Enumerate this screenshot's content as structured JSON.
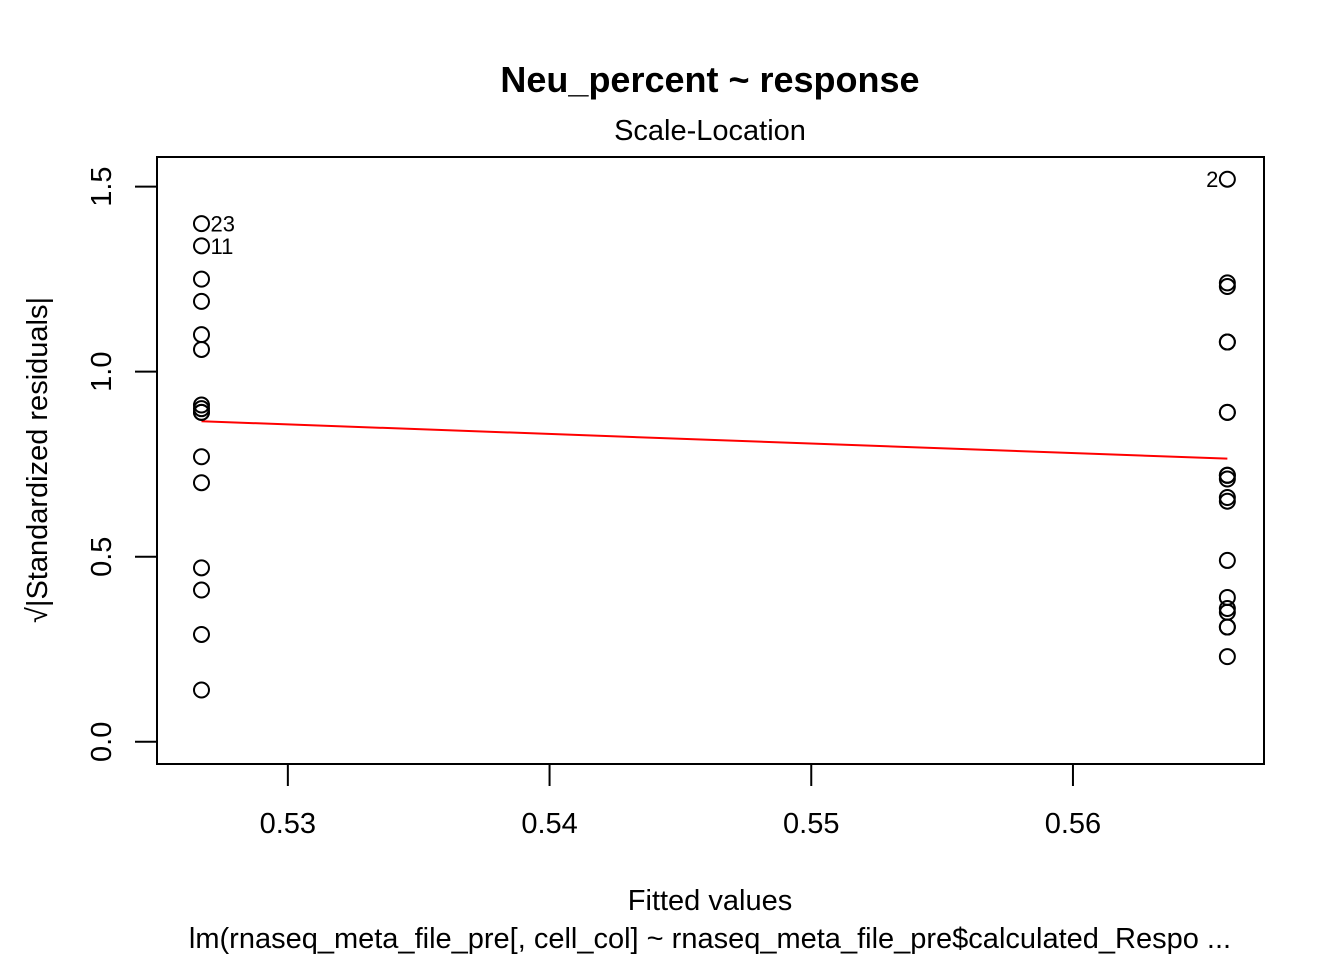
{
  "chart_data": {
    "type": "scatter",
    "title": "Neu_percent ~ response",
    "subtitle": "Scale-Location",
    "xlabel": "Fitted values",
    "ylabel": "√|Standardized residuals|",
    "caption": "lm(rnaseq_meta_file_pre[, cell_col] ~ rnaseq_meta_file_pre$calculated_Respo ...",
    "xlim": [
      0.525,
      0.5673
    ],
    "ylim": [
      -0.06,
      1.58
    ],
    "xticks": [
      0.53,
      0.54,
      0.55,
      0.56
    ],
    "xtick_labels": [
      "0.53",
      "0.54",
      "0.55",
      "0.56"
    ],
    "yticks": [
      0.0,
      0.5,
      1.0,
      1.5
    ],
    "ytick_labels": [
      "0.0",
      "0.5",
      "1.0",
      "1.5"
    ],
    "grid": false,
    "series": [
      {
        "x": [
          0.5267,
          0.5267,
          0.5267,
          0.5267,
          0.5267,
          0.5267,
          0.5267,
          0.5267,
          0.5267,
          0.5267,
          0.5267,
          0.5267,
          0.5267,
          0.5267,
          0.5267,
          0.5267,
          0.5659,
          0.5659,
          0.5659,
          0.5659,
          0.5659,
          0.5659,
          0.5659,
          0.5659,
          0.5659,
          0.5659,
          0.5659,
          0.5659,
          0.5659,
          0.5659,
          0.5659,
          0.5659,
          0.5659,
          0.5659,
          0.5659
        ],
        "y": [
          1.4,
          1.34,
          1.25,
          1.19,
          1.1,
          1.06,
          0.91,
          0.89,
          0.77,
          0.7,
          0.47,
          0.41,
          0.29,
          0.14,
          0.9,
          0.89,
          1.52,
          1.24,
          1.23,
          1.08,
          1.08,
          0.89,
          0.89,
          0.72,
          0.72,
          0.71,
          0.66,
          0.65,
          0.49,
          0.39,
          0.36,
          0.35,
          0.31,
          0.31,
          0.23
        ],
        "labels": [
          "23",
          "11",
          "",
          "",
          "",
          "",
          "",
          "",
          "",
          "",
          "",
          "",
          "",
          "",
          "",
          "",
          "2",
          "",
          "",
          "",
          "",
          "",
          "",
          "",
          "",
          "",
          "",
          "",
          "",
          "",
          "",
          "",
          "",
          "",
          ""
        ]
      }
    ],
    "smooth_line": {
      "x": [
        0.5267,
        0.5659
      ],
      "y": [
        0.866,
        0.765
      ],
      "color": "#ff0000"
    }
  }
}
